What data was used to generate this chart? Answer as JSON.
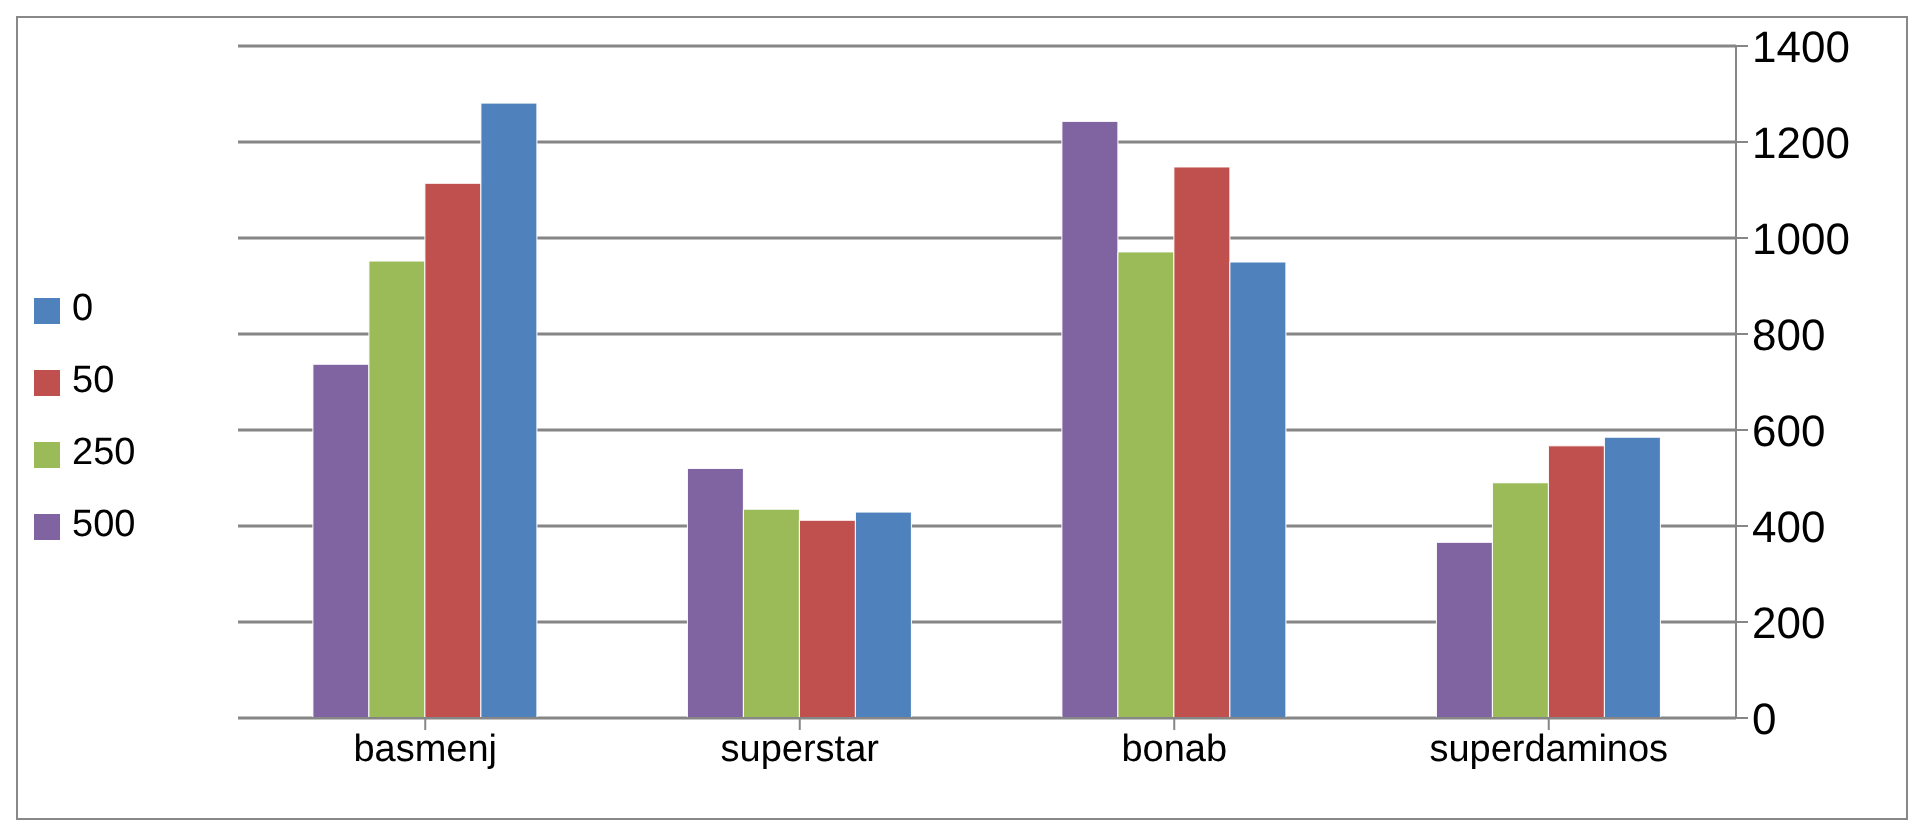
{
  "chart_data": {
    "type": "bar",
    "categories": [
      "basmenj",
      "superstar",
      "bonab",
      "superdaminos"
    ],
    "series": [
      {
        "name": "500",
        "color": "#8064a2",
        "values": [
          737,
          520,
          1243,
          366
        ]
      },
      {
        "name": "250",
        "color": "#9bbb59",
        "values": [
          952,
          435,
          971,
          490
        ]
      },
      {
        "name": "50",
        "color": "#c0504d",
        "values": [
          1114,
          412,
          1148,
          567
        ]
      },
      {
        "name": "0",
        "color": "#4f81bd",
        "values": [
          1281,
          429,
          950,
          585
        ]
      }
    ],
    "ylim": [
      0,
      1400
    ],
    "yticks": [
      0,
      200,
      400,
      600,
      800,
      1000,
      1200,
      1400
    ],
    "grid": "y",
    "legend": "left"
  }
}
